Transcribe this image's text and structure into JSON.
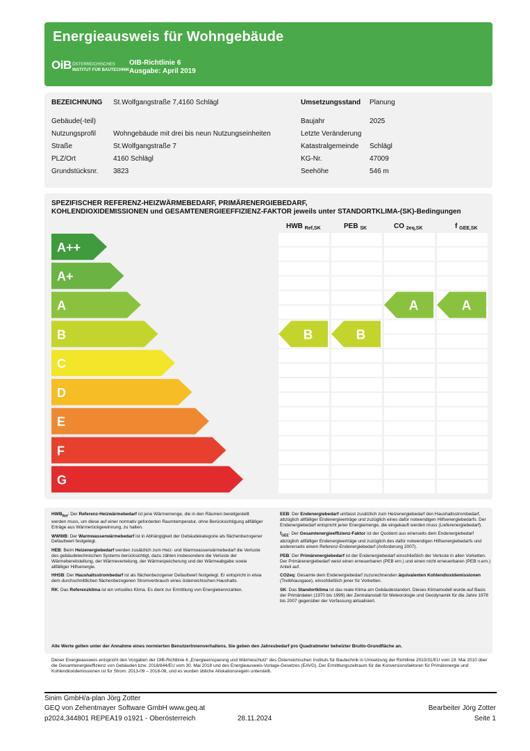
{
  "header": {
    "title": "Energieausweis für Wohngebäude",
    "logo_mark": "OiB",
    "logo_line1": "ÖSTERREICHISCHES",
    "logo_line2": "INSTITUT FÜR BAUTECHNIK",
    "richtlinie": "OIB-Richtlinie 6",
    "ausgabe": "Ausgabe: April 2019"
  },
  "info": {
    "bezeichnung_label": "BEZEICHNUNG",
    "bezeichnung_value": "St.Wolfgangstraße 7,4160 Schlägl",
    "umsetzung_label": "Umsetzungsstand",
    "umsetzung_value": "Planung",
    "gebaeude_label": "Gebäude(-teil)",
    "gebaeude_value": "",
    "baujahr_label": "Baujahr",
    "baujahr_value": "2025",
    "nutzung_label": "Nutzungsprofil",
    "nutzung_value": "Wohngebäude mit drei bis neun Nutzungseinheiten",
    "letzte_label": "Letzte Veränderung",
    "letzte_value": "",
    "strasse_label": "Straße",
    "strasse_value": "St.Wolfgangstraße 7",
    "kg_label": "Katastralgemeinde",
    "kg_value": "Schlägl",
    "plz_label": "PLZ/Ort",
    "plz_value": "4160 Schlägl",
    "kgnr_label": "KG-Nr.",
    "kgnr_value": "47009",
    "grund_label": "Grundstücksnr.",
    "grund_value": "3823",
    "seehoehe_label": "Seehöhe",
    "seehoehe_value": "546 m"
  },
  "chart_data": {
    "type": "table",
    "title_line1": "SPEZIFISCHER REFERENZ-HEIZWÄRMEBEDARF, PRIMÄRENERGIEBEDARF,",
    "title_line2": "KOHLENDIOXIDEMISSIONEN und GESAMTENERGIEEFFIZIENZ-FAKTOR jeweils unter STANDORTKLIMA-(SK)-Bedingungen",
    "classes": [
      "A++",
      "A+",
      "A",
      "B",
      "C",
      "D",
      "E",
      "F",
      "G"
    ],
    "class_colors": [
      "#3f9b3d",
      "#6bb342",
      "#8ac23f",
      "#c3d52d",
      "#f2e52a",
      "#f7bd25",
      "#ef8931",
      "#e7402f",
      "#e22b2d"
    ],
    "columns": [
      {
        "label": "HWB",
        "sub": "Ref,SK",
        "rating": "B"
      },
      {
        "label": "PEB",
        "sub": "SK",
        "rating": "B"
      },
      {
        "label": "CO",
        "sub": "2eq,SK",
        "rating": "A"
      },
      {
        "label": "f",
        "sub": "GEE,SK",
        "rating": "A"
      }
    ]
  },
  "notes": {
    "left": [
      {
        "b": "HWB",
        "bsub": "Ref",
        "t": ": Der ",
        "b2": "Referenz-Heizwärmebedarf",
        "t2": " ist jene Wärmemenge, die in den Räumen bereitgestellt werden muss, um diese auf einer normativ geforderten Raumtemperatur, ohne Berücksichtigung allfälliger Erträge aus Wärmerückgewinnung, zu halten."
      },
      {
        "b": "WWWB",
        "bsub": "",
        "t": ": Der ",
        "b2": "Warmwasserwärmebedarf",
        "t2": " ist in Abhängigkeit der Gebäudekategorie als flächenbezogener Defaultwert festgelegt."
      },
      {
        "b": "HEB",
        "bsub": "",
        "t": ": Beim ",
        "b2": "Heizenergiebedarf",
        "t2": " werden zusätzlich zum Heiz- und Warmwasserwärmebedarf die Verluste des gebäudetechnischen Systems berücksichtigt, dazu zählen insbesondere die Verluste der Wärmebereitstellung, der Wärmeverteilung, der Wärmespeicherung und der Wärmeabgabe sowie allfälliger Hilfsenergie."
      },
      {
        "b": "HHSB",
        "bsub": "",
        "t": ": Der ",
        "b2": "Haushaltsstrombedarf",
        "t2": " ist als flächenbezogener Defaultwert festgelegt. Er entspricht in etwa dem durchschnittlichen flächenbezogenen Stromverbrauch eines österreichischen Haushalts."
      },
      {
        "b": "RK",
        "bsub": "",
        "t": ": Das ",
        "b2": "Referenzklima",
        "t2": " ist ein virtuelles Klima. Es dient zur Ermittlung von Energiekennzahlen."
      }
    ],
    "right": [
      {
        "b": "EEB",
        "bsub": "",
        "t": ": Der ",
        "b2": "Endenergiebedarf",
        "t2": " umfasst zusätzlich zum Heizenergiebedarf den Haushaltsstrombedarf, abzüglich allfälliger Endenergieerträge und zuzüglich eines dafür notwendigen Hilfsenergiebedarfs. Der Endenergiebedarf entspricht jener Energiemenge, die eingekauft werden muss (Lieferenergiebedarf)."
      },
      {
        "b": "f",
        "bsub": "GEE",
        "t": ": Der ",
        "b2": "Gesamtenergieeffizienz-Faktor",
        "t2": " ist der Quotient aus einerseits dem Endenergiebedarf abzüglich allfälliger Endenergieerträge und zuzüglich des dafür notwendigen Hilfsenergiebedarfs und andererseits einem Referenz-Endenergiebedarf (Anforderung 2007)."
      },
      {
        "b": "PEB",
        "bsub": "",
        "t": ": Der ",
        "b2": "Primärenergiebedarf",
        "t2": " ist der Endenergiebedarf einschließlich der Verluste in allen Vorketten. Der Primärenergiebedarf weist einen erneuerbaren (PEB ern.) und einen nicht erneuerbaren (PEB n.ern.) Anteil auf."
      },
      {
        "b": "CO2eq",
        "bsub": "",
        "t": ": Gesamte dem Endenergiebedarf zuzurechnenden ",
        "b2": "äquivalenten Kohlendioxidemissionen",
        "t2": " (Treibhausgase), einschließlich jener für Vorketten."
      },
      {
        "b": "SK",
        "bsub": "",
        "t": ": Das ",
        "b2": "Standortklima",
        "t2": " ist das reale Klima am Gebäudestandort. Dieses Klimamodell wurde auf Basis der Primärdaten (1970 bis 1999) der Zentralanstalt für Meteorologie und Geodynamik für die Jahre 1978 bis 2007 gegenüber der Vorfassung aktualisiert."
      }
    ],
    "all_values": "Alle Werte gelten unter der Annahme eines normierten BenutzerInnenverhaltens. Sie geben den Jahresbedarf pro Quadratmeter beheizter Brutto-Grundfläche an."
  },
  "footnote": "Dieser Energieausweis entspricht den Vorgaben der OIB-Richtlinie 6 „Energieeinsparung und Wärmeschutz“ des Österreichischen Instituts für Bautechnik in Umsetzung der Richtlinie 2010/31/EU vom 19. Mai 2010 über die Gesamtenergieeffizienz von Gebäuden bzw. 2018/844/EU vom 30. Mai 2018 und des Energieausweis-Vorlage-Gesetzes (EAVG). Der Ermittlungszeitraum für die Konversionsfaktoren für Primärenergie und Kohlendioxidemissionen ist für Strom: 2013-09 – 2018-08, und es wurden übliche Allokationsregeln unterstellt.",
  "footer": {
    "line1": "Sinim GmbH/a-plan Jörg Zotter",
    "line2": "GEQ von Zehentmayer Software GmbH www.geq.at",
    "line3": "p2024,344801 REPEA19 o1921 - Oberösterreich",
    "date": "28.11.2024",
    "bearbeiter": "Bearbeiter Jörg Zotter",
    "seite": "Seite 1"
  }
}
